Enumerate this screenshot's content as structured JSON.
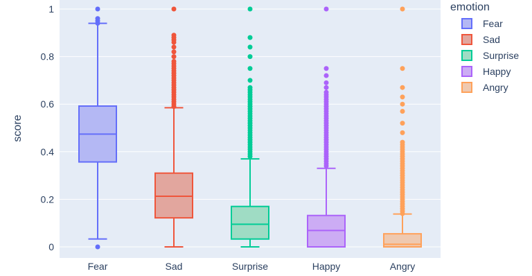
{
  "chart_data": {
    "type": "box",
    "ylabel": "score",
    "xlabel": "",
    "ylim": [
      0,
      1
    ],
    "yticks": [
      0,
      0.2,
      0.4,
      0.6,
      0.8,
      1
    ],
    "ytick_labels": [
      "0",
      "0.2",
      "0.4",
      "0.6",
      "0.8",
      "1"
    ],
    "categories": [
      "Fear",
      "Sad",
      "Surprise",
      "Happy",
      "Angry"
    ],
    "legend": {
      "title": "emotion",
      "placement": "right"
    },
    "series": [
      {
        "name": "Fear",
        "color": "#636efa",
        "fill": "#b4b8f4",
        "min": 0.033,
        "q1": 0.357,
        "median": 0.474,
        "q3": 0.592,
        "max": 0.94,
        "outliers": [
          0,
          0.94,
          0.95,
          0.96,
          1
        ]
      },
      {
        "name": "Sad",
        "color": "#ef553b",
        "fill": "#e2a69e",
        "min": 0,
        "q1": 0.122,
        "median": 0.213,
        "q3": 0.31,
        "max": 0.585,
        "outliers": [
          0.59,
          0.6,
          0.61,
          0.62,
          0.63,
          0.64,
          0.65,
          0.66,
          0.67,
          0.68,
          0.69,
          0.7,
          0.71,
          0.72,
          0.73,
          0.74,
          0.75,
          0.76,
          0.77,
          0.78,
          0.8,
          0.82,
          0.84,
          0.86,
          0.87,
          0.88,
          0.89,
          1
        ]
      },
      {
        "name": "Surprise",
        "color": "#00cc96",
        "fill": "#9fdcc4",
        "min": 0,
        "q1": 0.033,
        "median": 0.095,
        "q3": 0.17,
        "max": 0.37,
        "outliers": [
          0.38,
          0.39,
          0.4,
          0.41,
          0.42,
          0.43,
          0.44,
          0.45,
          0.46,
          0.47,
          0.48,
          0.49,
          0.5,
          0.51,
          0.52,
          0.53,
          0.54,
          0.55,
          0.56,
          0.57,
          0.58,
          0.59,
          0.6,
          0.61,
          0.62,
          0.63,
          0.64,
          0.65,
          0.66,
          0.67,
          0.7,
          0.75,
          0.8,
          0.84,
          0.88,
          1
        ]
      },
      {
        "name": "Happy",
        "color": "#ab63fa",
        "fill": "#ccacf4",
        "min": 0,
        "q1": 0,
        "median": 0.069,
        "q3": 0.132,
        "max": 0.33,
        "outliers": [
          0.34,
          0.35,
          0.36,
          0.37,
          0.38,
          0.39,
          0.4,
          0.41,
          0.42,
          0.43,
          0.44,
          0.45,
          0.46,
          0.47,
          0.48,
          0.49,
          0.5,
          0.51,
          0.52,
          0.53,
          0.54,
          0.55,
          0.56,
          0.57,
          0.58,
          0.59,
          0.6,
          0.61,
          0.62,
          0.63,
          0.64,
          0.65,
          0.67,
          0.69,
          0.72,
          0.75,
          1
        ]
      },
      {
        "name": "Angry",
        "color": "#ffa15a",
        "fill": "#efc9b0",
        "min": 0,
        "q1": 0,
        "median": 0.011,
        "q3": 0.055,
        "max": 0.138,
        "outliers": [
          0.14,
          0.15,
          0.16,
          0.17,
          0.18,
          0.19,
          0.2,
          0.21,
          0.22,
          0.23,
          0.24,
          0.25,
          0.26,
          0.27,
          0.28,
          0.29,
          0.3,
          0.31,
          0.32,
          0.33,
          0.34,
          0.35,
          0.36,
          0.37,
          0.38,
          0.39,
          0.4,
          0.41,
          0.42,
          0.43,
          0.44,
          0.48,
          0.52,
          0.57,
          0.6,
          0.63,
          0.67,
          0.75,
          1
        ]
      }
    ]
  }
}
